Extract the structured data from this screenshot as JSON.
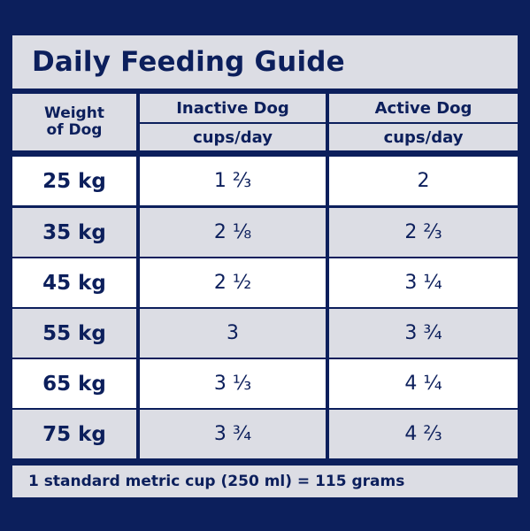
{
  "title": "Daily Feeding Guide",
  "headers": {
    "weight_line1": "Weight",
    "weight_line2": "of Dog",
    "inactive": "Inactive Dog",
    "active": "Active Dog",
    "inactive_unit": "cups/day",
    "active_unit": "cups/day"
  },
  "rows": [
    {
      "weight": "25 kg",
      "inactive": "1 ⅔",
      "active": "2"
    },
    {
      "weight": "35 kg",
      "inactive": "2 ⅛",
      "active": "2 ⅔"
    },
    {
      "weight": "45 kg",
      "inactive": "2 ½",
      "active": "3 ¼"
    },
    {
      "weight": "55 kg",
      "inactive": "3",
      "active": "3 ¾"
    },
    {
      "weight": "65 kg",
      "inactive": "3 ⅓",
      "active": "4 ¼"
    },
    {
      "weight": "75 kg",
      "inactive": "3 ¾",
      "active": "4 ⅔"
    }
  ],
  "footer": "1 standard metric cup (250 ml) = 115 grams",
  "colors": {
    "navy": "#0c1f5c",
    "grey": "#dcdde4",
    "white": "#ffffff"
  }
}
